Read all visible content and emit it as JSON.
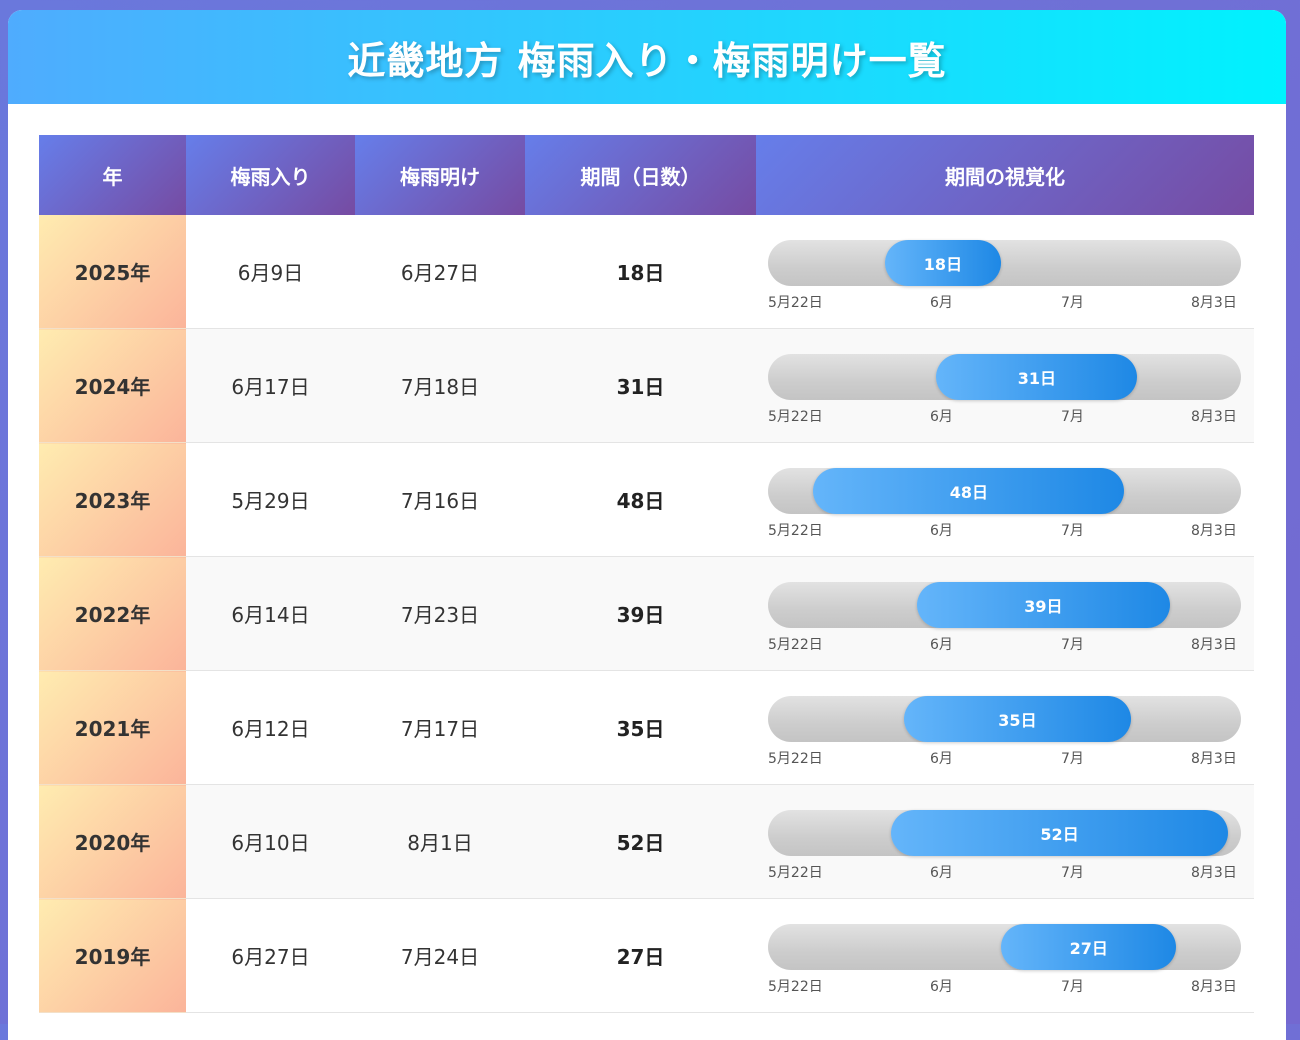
{
  "title": "近畿地方 梅雨入り・梅雨明け一覧",
  "headers": {
    "year": "年",
    "start": "梅雨入り",
    "end": "梅雨明け",
    "duration": "期間（日数）",
    "viz": "期間の視覚化"
  },
  "axis_labels": [
    "5月22日",
    "6月",
    "7月",
    "8月3日"
  ],
  "rows": [
    {
      "year": "2025年",
      "start": "6月9日",
      "end": "6月27日",
      "days": "18日",
      "bar_label": "18日",
      "start_offset": 18,
      "length": 18
    },
    {
      "year": "2024年",
      "start": "6月17日",
      "end": "7月18日",
      "days": "31日",
      "bar_label": "31日",
      "start_offset": 26,
      "length": 31
    },
    {
      "year": "2023年",
      "start": "5月29日",
      "end": "7月16日",
      "days": "48日",
      "bar_label": "48日",
      "start_offset": 7,
      "length": 48
    },
    {
      "year": "2022年",
      "start": "6月14日",
      "end": "7月23日",
      "days": "39日",
      "bar_label": "39日",
      "start_offset": 23,
      "length": 39
    },
    {
      "year": "2021年",
      "start": "6月12日",
      "end": "7月17日",
      "days": "35日",
      "bar_label": "35日",
      "start_offset": 21,
      "length": 35
    },
    {
      "year": "2020年",
      "start": "6月10日",
      "end": "8月1日",
      "days": "52日",
      "bar_label": "52日",
      "start_offset": 19,
      "length": 52
    },
    {
      "year": "2019年",
      "start": "6月27日",
      "end": "7月24日",
      "days": "27日",
      "bar_label": "27日",
      "start_offset": 36,
      "length": 27
    }
  ]
}
